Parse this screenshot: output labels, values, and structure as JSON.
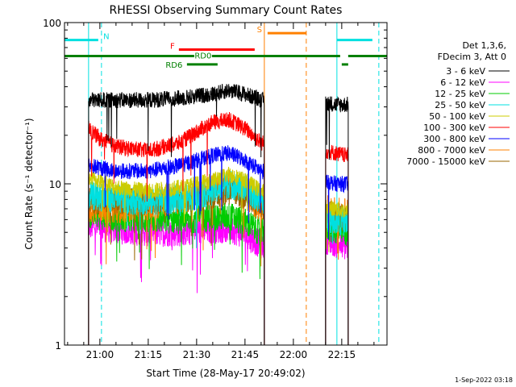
{
  "chart_data": {
    "type": "line",
    "title": "RHESSI Observing Summary Count Rates",
    "xlabel": "Start Time (28-May-17 20:49:02)",
    "ylabel": "Count Rate (s⁻¹ detector⁻¹)",
    "yscale": "log",
    "ylim": [
      1,
      100
    ],
    "xlim": [
      "20:49:02",
      "22:29:02"
    ],
    "x_ticks": [
      "21:00",
      "21:15",
      "21:30",
      "21:45",
      "22:00",
      "22:15"
    ],
    "y_ticks": [
      "1",
      "10",
      "100"
    ],
    "grid": false,
    "legend_position": "right",
    "legend_header": [
      "Det 1,3,6,",
      "FDecim 3, Att 0"
    ],
    "timestamp": "1-Sep-2022 03:18",
    "data_gaps": [
      [
        "20:49:02",
        "20:56:30"
      ],
      [
        "21:51:00",
        "22:10:00"
      ],
      [
        "22:17:00",
        "22:29:02"
      ]
    ],
    "series": [
      {
        "name": "3 - 6 keV",
        "color": "#000000",
        "x": [
          "20:56:30",
          "21:05",
          "21:15",
          "21:25",
          "21:35",
          "21:40",
          "21:45",
          "21:50",
          "22:10",
          "22:13",
          "22:16"
        ],
        "values": [
          33,
          33,
          33,
          34,
          36,
          38,
          36,
          33,
          32,
          31,
          31
        ]
      },
      {
        "name": "6 - 12 keV",
        "color": "#ff00ff",
        "x": [
          "20:56:30",
          "21:05",
          "21:15",
          "21:25",
          "21:35",
          "21:40",
          "21:45",
          "21:50",
          "22:10",
          "22:13",
          "22:16"
        ],
        "values": [
          5.5,
          5.2,
          5,
          5,
          5.2,
          5.3,
          4.8,
          4.2,
          4.5,
          4.3,
          4.1
        ]
      },
      {
        "name": "12 - 25 keV",
        "color": "#00cc00",
        "x": [
          "20:56:30",
          "21:05",
          "21:15",
          "21:25",
          "21:35",
          "21:40",
          "21:45",
          "21:50",
          "22:10",
          "22:13",
          "22:16"
        ],
        "values": [
          6.5,
          6.2,
          6,
          6,
          6.2,
          6.3,
          5.8,
          5,
          5.4,
          5.2,
          5
        ]
      },
      {
        "name": "25 - 50 keV",
        "color": "#00e0e0",
        "x": [
          "20:56:30",
          "21:05",
          "21:15",
          "21:25",
          "21:35",
          "21:40",
          "21:45",
          "21:50",
          "22:10",
          "22:13",
          "22:16"
        ],
        "values": [
          8.5,
          8,
          7.8,
          8,
          9,
          10,
          9.2,
          8,
          6.2,
          6,
          5.8
        ]
      },
      {
        "name": "50 - 100 keV",
        "color": "#cccc00",
        "x": [
          "20:56:30",
          "21:05",
          "21:15",
          "21:25",
          "21:35",
          "21:40",
          "21:45",
          "21:50",
          "22:10",
          "22:13",
          "22:16"
        ],
        "values": [
          11,
          9.5,
          9,
          9.5,
          10.5,
          11.5,
          10.5,
          9,
          7.2,
          7,
          6.8
        ]
      },
      {
        "name": "100 - 300 keV",
        "color": "#ff0000",
        "x": [
          "20:56:30",
          "21:00",
          "21:05",
          "21:15",
          "21:25",
          "21:30",
          "21:35",
          "21:40",
          "21:45",
          "21:50",
          "22:10",
          "22:13",
          "22:16"
        ],
        "values": [
          22,
          19,
          17,
          16,
          18,
          21,
          24,
          25,
          22,
          18,
          16,
          15.5,
          15
        ]
      },
      {
        "name": "300 - 800 keV",
        "color": "#0000ff",
        "x": [
          "20:56:30",
          "21:05",
          "21:15",
          "21:25",
          "21:30",
          "21:35",
          "21:40",
          "21:45",
          "21:50",
          "22:10",
          "22:13",
          "22:16"
        ],
        "values": [
          13,
          12,
          12,
          13,
          14,
          15,
          15.5,
          14,
          12,
          10.5,
          10,
          10
        ]
      },
      {
        "name": "800 - 7000 keV",
        "color": "#ff8000",
        "x": [
          "20:56:30",
          "21:05",
          "21:15",
          "21:25",
          "21:30",
          "21:35",
          "21:40",
          "21:45",
          "21:50",
          "22:10",
          "22:13",
          "22:16"
        ],
        "values": [
          7,
          7,
          7.2,
          8,
          8.5,
          9.5,
          10,
          8.5,
          7,
          7,
          6.8,
          6.6
        ]
      },
      {
        "name": "7000 - 15000 keV",
        "color": "#996600",
        "x": [
          "20:56:30",
          "21:05",
          "21:15",
          "21:25",
          "21:35",
          "21:40",
          "21:45",
          "21:50",
          "22:10",
          "22:13",
          "22:16"
        ],
        "values": [
          8,
          7.8,
          7.8,
          8,
          8.5,
          9,
          8.5,
          7.5,
          6.5,
          6.3,
          6.2
        ]
      }
    ],
    "flag_bars": [
      {
        "label": "N",
        "color": "#00e0e0",
        "level": 78,
        "segments": [
          [
            "20:49:02",
            "20:59:30"
          ],
          [
            "22:13:30",
            "22:24:30"
          ]
        ]
      },
      {
        "label": "F",
        "color": "#ff0000",
        "level": 68,
        "segments": [
          [
            "21:24:30",
            "21:48:00"
          ]
        ]
      },
      {
        "label": "RD0",
        "color": "#008000",
        "level": 62,
        "segments": [
          [
            "20:49:02",
            "22:14:30"
          ],
          [
            "22:17:00",
            "22:29:02"
          ]
        ]
      },
      {
        "label": "RD6",
        "color": "#008000",
        "level": 55,
        "segments": [
          [
            "21:27:00",
            "21:36:30"
          ],
          [
            "22:15:00",
            "22:17:00"
          ]
        ]
      },
      {
        "label": "S",
        "color": "#ff8000",
        "level": 86,
        "segments": [
          [
            "21:52:00",
            "22:04:00"
          ]
        ]
      }
    ],
    "event_lines": [
      {
        "time": "21:00:30",
        "color": "#00e0e0",
        "style": "dashed"
      },
      {
        "time": "22:13:30",
        "color": "#00e0e0",
        "style": "solid"
      },
      {
        "time": "22:26:30",
        "color": "#00e0e0",
        "style": "dashed"
      },
      {
        "time": "20:56:30",
        "color": "#00e0e0",
        "style": "solid"
      },
      {
        "time": "21:51:00",
        "color": "#ff8000",
        "style": "solid"
      },
      {
        "time": "22:04:00",
        "color": "#ff8000",
        "style": "dashed"
      }
    ]
  }
}
